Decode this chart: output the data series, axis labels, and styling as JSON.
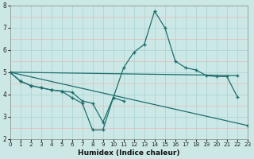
{
  "xlabel": "Humidex (Indice chaleur)",
  "background_color": "#cce8e6",
  "grid_color": "#b0d8d5",
  "pink_grid_color": "#e8b8b8",
  "line_color": "#1e6e6e",
  "lines": [
    {
      "x": [
        0,
        1,
        2,
        3,
        4,
        5,
        6,
        7,
        8,
        9,
        10,
        11,
        12,
        13,
        14,
        15,
        16,
        17,
        18,
        19,
        20,
        21,
        22
      ],
      "y": [
        5.0,
        4.6,
        4.4,
        4.3,
        4.2,
        4.15,
        4.1,
        3.7,
        3.6,
        2.75,
        3.85,
        5.2,
        5.9,
        6.25,
        7.75,
        7.0,
        5.5,
        5.2,
        5.1,
        4.85,
        4.8,
        4.8,
        3.9
      ]
    },
    {
      "x": [
        0,
        1,
        2,
        3,
        4,
        5,
        6,
        7,
        8,
        9,
        10,
        11
      ],
      "y": [
        5.0,
        4.6,
        4.4,
        4.3,
        4.2,
        4.15,
        3.85,
        3.6,
        2.4,
        2.4,
        3.85,
        3.7
      ]
    },
    {
      "x": [
        0,
        22
      ],
      "y": [
        5.0,
        4.85
      ]
    },
    {
      "x": [
        0,
        23
      ],
      "y": [
        5.0,
        2.6
      ]
    }
  ],
  "xlim": [
    0,
    23
  ],
  "ylim": [
    2.0,
    8.0
  ],
  "xticks": [
    0,
    1,
    2,
    3,
    4,
    5,
    6,
    7,
    8,
    9,
    10,
    11,
    12,
    13,
    14,
    15,
    16,
    17,
    18,
    19,
    20,
    21,
    22,
    23
  ],
  "yticks": [
    2,
    3,
    4,
    5,
    6,
    7,
    8
  ],
  "figsize": [
    3.2,
    2.0
  ],
  "dpi": 100
}
